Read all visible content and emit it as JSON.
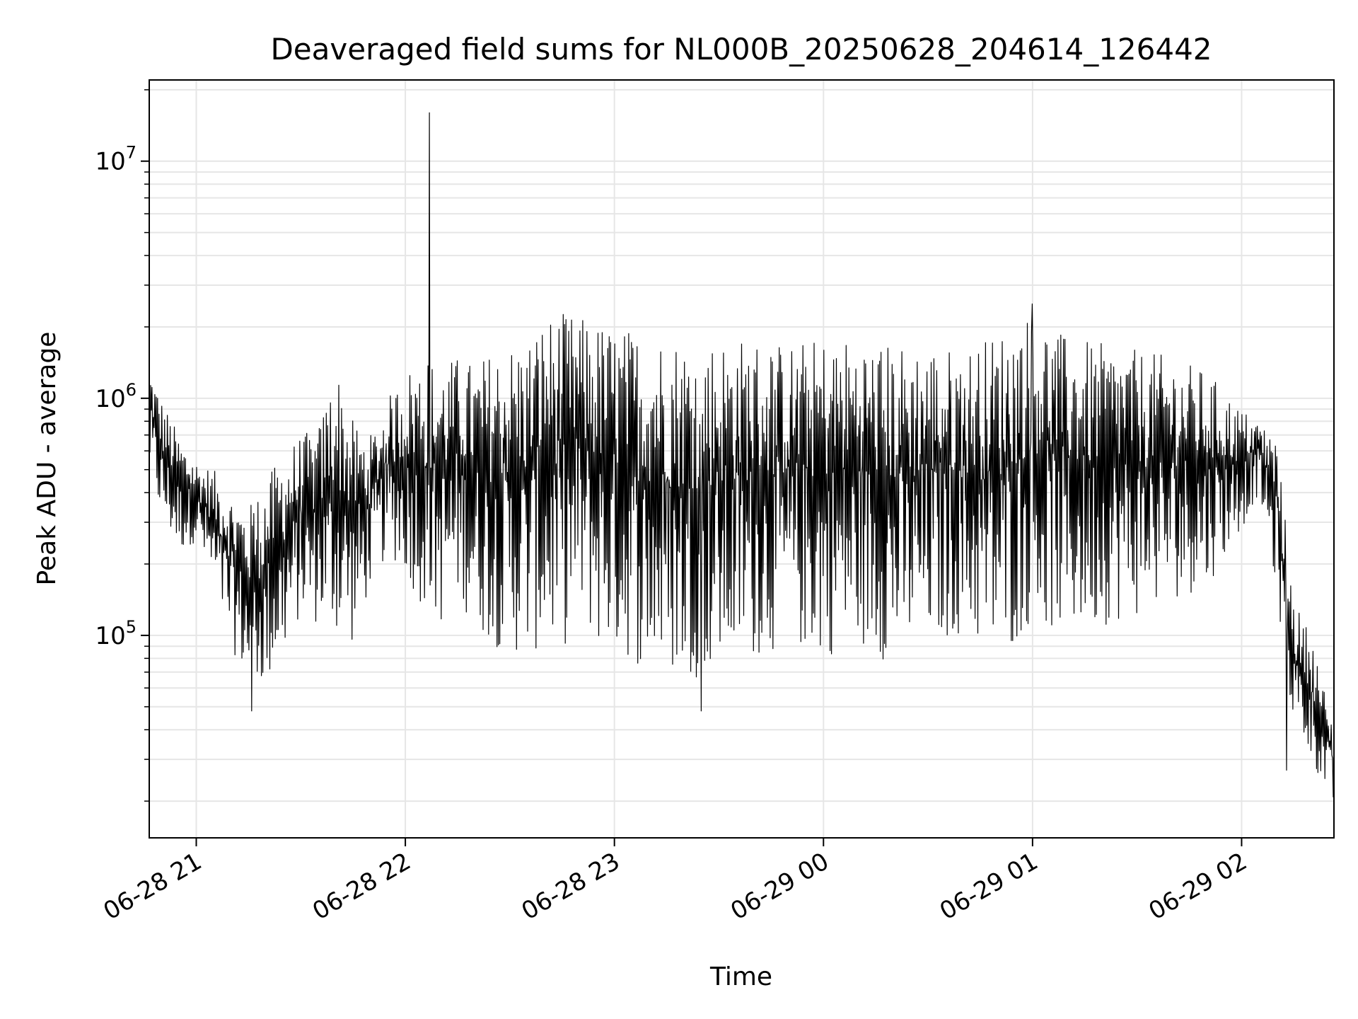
{
  "chart_data": {
    "type": "line",
    "title": "Deaveraged field sums for NL000B_20250628_204614_126442",
    "xlabel": "Time",
    "ylabel": "Peak ADU - average",
    "yscale": "log",
    "ylim": [
      14000,
      22000000
    ],
    "xlim": [
      "2025-06-28 20:46:30",
      "2025-06-29 02:26:30"
    ],
    "grid": true,
    "line_color": "#000000",
    "grid_color": "#e6e6e6",
    "x_ticks": [
      {
        "value": "2025-06-28 21:00",
        "label": "06-28 21"
      },
      {
        "value": "2025-06-28 22:00",
        "label": "06-28 22"
      },
      {
        "value": "2025-06-28 23:00",
        "label": "06-28 23"
      },
      {
        "value": "2025-06-29 00:00",
        "label": "06-29 00"
      },
      {
        "value": "2025-06-29 01:00",
        "label": "06-29 01"
      },
      {
        "value": "2025-06-29 02:00",
        "label": "06-29 02"
      }
    ],
    "y_ticks": [
      {
        "value": 100000,
        "base": "10",
        "exp": "5"
      },
      {
        "value": 1000000,
        "base": "10",
        "exp": "6"
      },
      {
        "value": 10000000,
        "base": "10",
        "exp": "7"
      }
    ],
    "series": [
      {
        "color": "#000000",
        "envelope": {
          "x": [
            "2025-06-28 20:46:30",
            "2025-06-28 20:50",
            "2025-06-28 20:55",
            "2025-06-28 21:00",
            "2025-06-28 21:05",
            "2025-06-28 21:10",
            "2025-06-28 21:15",
            "2025-06-28 21:20",
            "2025-06-28 21:25",
            "2025-06-28 21:30",
            "2025-06-28 21:35",
            "2025-06-28 21:40",
            "2025-06-28 21:45",
            "2025-06-28 21:50",
            "2025-06-28 21:55",
            "2025-06-28 22:00",
            "2025-06-28 22:05",
            "2025-06-28 22:10",
            "2025-06-28 22:15",
            "2025-06-28 22:20",
            "2025-06-28 22:25",
            "2025-06-28 22:30",
            "2025-06-28 22:35",
            "2025-06-28 22:40",
            "2025-06-28 22:45",
            "2025-06-28 22:50",
            "2025-06-28 22:55",
            "2025-06-28 23:00",
            "2025-06-28 23:10",
            "2025-06-28 23:20",
            "2025-06-28 23:30",
            "2025-06-28 23:40",
            "2025-06-28 23:50",
            "2025-06-29 00:00",
            "2025-06-29 00:10",
            "2025-06-29 00:20",
            "2025-06-29 00:30",
            "2025-06-29 00:40",
            "2025-06-29 00:50",
            "2025-06-29 01:00",
            "2025-06-29 01:10",
            "2025-06-29 01:20",
            "2025-06-29 01:30",
            "2025-06-29 01:40",
            "2025-06-29 01:50",
            "2025-06-29 02:00",
            "2025-06-29 02:05",
            "2025-06-29 02:10",
            "2025-06-29 02:15",
            "2025-06-29 02:20",
            "2025-06-29 02:26:30"
          ],
          "low": [
            500000,
            300000,
            220000,
            250000,
            150000,
            90000,
            60000,
            60000,
            80000,
            120000,
            110000,
            100000,
            90000,
            160000,
            220000,
            180000,
            130000,
            110000,
            140000,
            110000,
            90000,
            85000,
            80000,
            90000,
            85000,
            120000,
            90000,
            85000,
            70000,
            65000,
            70000,
            80000,
            90000,
            80000,
            90000,
            75000,
            90000,
            100000,
            75000,
            110000,
            100000,
            110000,
            120000,
            140000,
            160000,
            280000,
            400000,
            150000,
            40000,
            30000,
            18000
          ],
          "high": [
            1400000,
            1000000,
            700000,
            550000,
            500000,
            400000,
            350000,
            450000,
            600000,
            700000,
            750000,
            1400000,
            800000,
            700000,
            1000000,
            1300000,
            1500000,
            1400000,
            1500000,
            1400000,
            1600000,
            1700000,
            1800000,
            2200000,
            2300000,
            2200000,
            2100000,
            2000000,
            1900000,
            1800000,
            1800000,
            1800000,
            1700000,
            1800000,
            1800000,
            1700000,
            1700000,
            1600000,
            1900000,
            2300000,
            1800000,
            1700000,
            1600000,
            1500000,
            1300000,
            900000,
            800000,
            700000,
            140000,
            100000,
            40000
          ]
        },
        "spikes": [
          {
            "x": "2025-06-28 22:07",
            "value": 16000000
          },
          {
            "x": "2025-06-28 21:16",
            "value": 48000
          },
          {
            "x": "2025-06-28 23:25",
            "value": 48000
          },
          {
            "x": "2025-06-29 01:00",
            "value": 2500000
          },
          {
            "x": "2025-06-29 02:13",
            "value": 27000
          }
        ]
      }
    ]
  }
}
